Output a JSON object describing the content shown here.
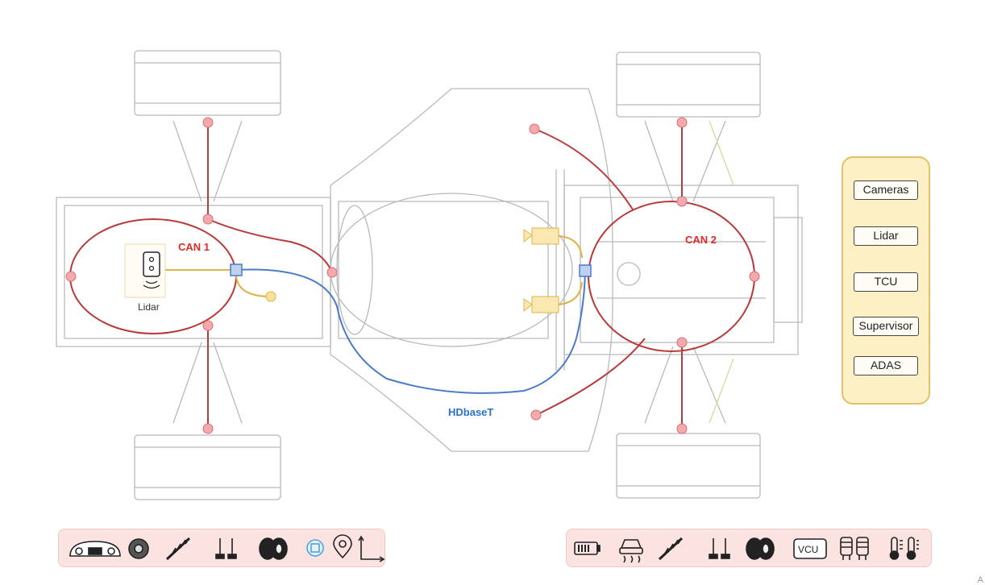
{
  "labels": {
    "can1": "CAN 1",
    "can2": "CAN 2",
    "hdbaset": "HDbaseT",
    "lidar": "Lidar",
    "vcu": "VCU"
  },
  "legend": {
    "items": [
      "Cameras",
      "Lidar",
      "TCU",
      "Supervisor",
      "ADAS"
    ]
  },
  "icon_bar_left": {
    "icons": [
      "dashboard-icon",
      "steering-wheel-icon",
      "suspension-spring-icon",
      "pedals-icon",
      "tires-icon",
      "chip-icon",
      "gps-pin-icon",
      "axis-icon"
    ]
  },
  "icon_bar_right": {
    "icons": [
      "battery-icon",
      "car-traction-icon",
      "suspension-spring-icon",
      "pedals-icon",
      "tires-icon",
      "vcu-icon",
      "brake-caliper-icon",
      "thermometer-icon"
    ]
  },
  "colors": {
    "can_bus": "#b83a3a",
    "node": "#f4a9ad",
    "hdbaset": "#4a7bc8",
    "lidar_wire": "#dcb44a",
    "legend_fill": "#fdf0c4",
    "legend_border": "#e3c06a",
    "icon_bar_fill": "#fbe3e1",
    "chassis": "#b9b9b9"
  },
  "corner_mark": "A"
}
